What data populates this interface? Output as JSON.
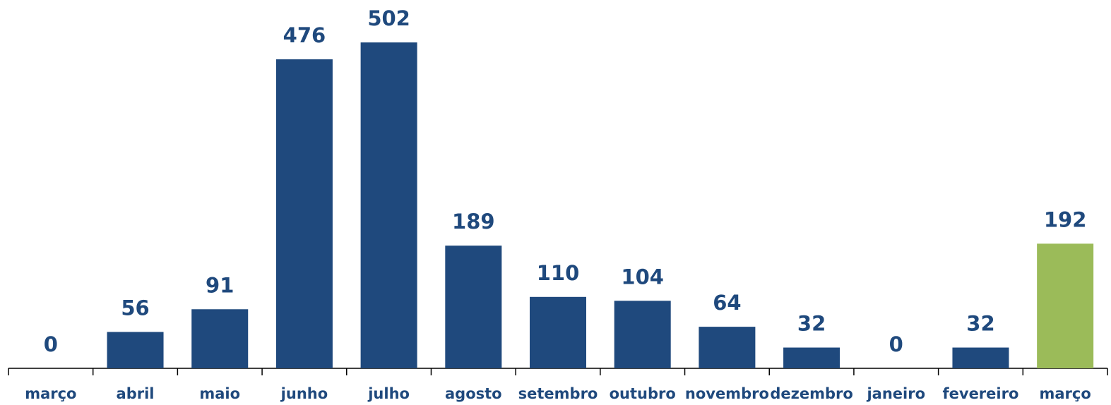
{
  "chart_data": {
    "type": "bar",
    "categories": [
      "março",
      "abril",
      "maio",
      "junho",
      "julho",
      "agosto",
      "setembro",
      "outubro",
      "novembro",
      "dezembro",
      "janeiro",
      "fevereiro",
      "março"
    ],
    "values": [
      0,
      56,
      91,
      476,
      502,
      189,
      110,
      104,
      64,
      32,
      0,
      32,
      192
    ],
    "colors": [
      "#1f497d",
      "#1f497d",
      "#1f497d",
      "#1f497d",
      "#1f497d",
      "#1f497d",
      "#1f497d",
      "#1f497d",
      "#1f497d",
      "#1f497d",
      "#1f497d",
      "#1f497d",
      "#9bbb59"
    ],
    "ylim": [
      0,
      550
    ]
  }
}
